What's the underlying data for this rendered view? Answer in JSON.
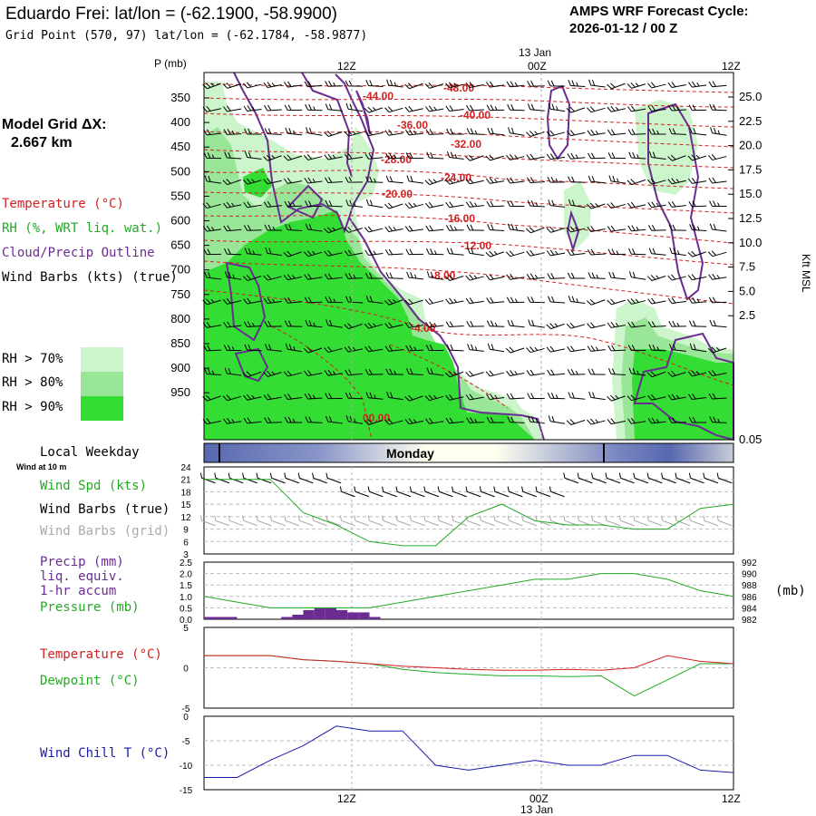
{
  "header": {
    "title": "Eduardo Frei:  lat/lon = (-62.1900, -58.9900)",
    "subtitle": "Grid Point (570, 97) lat/lon = (-62.1784, -58.9877)",
    "cycle_line1": "AMPS WRF Forecast Cycle:",
    "cycle_line2": "2026-01-12 / 00  Z"
  },
  "left_panel": {
    "model_grid_label": "Model Grid ΔX:",
    "model_grid_value": "2.667 km",
    "legend": [
      {
        "label": "Temperature (°C)",
        "color": "#d42020"
      },
      {
        "label": "RH (%, WRT liq. wat.)",
        "color": "#22aa22"
      },
      {
        "label": "Cloud/Precip Outline",
        "color": "#6a2c91"
      },
      {
        "label": "Wind Barbs (kts) (true)",
        "color": "#000000"
      }
    ],
    "rh_key": [
      {
        "label": "RH > 70%",
        "color": "#ccf5cc"
      },
      {
        "label": "RH > 80%",
        "color": "#99e699"
      },
      {
        "label": "RH > 90%",
        "color": "#33dd33"
      }
    ]
  },
  "chart_data": [
    {
      "type": "heatmap",
      "name": "time-height cross section",
      "y_left_label": "P (mb)",
      "y_left_ticks": [
        "350",
        "400",
        "450",
        "500",
        "550",
        "600",
        "650",
        "700",
        "750",
        "800",
        "850",
        "900",
        "950"
      ],
      "y_right_label": "Kft MSL",
      "y_right_ticks": [
        "25.0",
        "22.5",
        "20.0",
        "17.5",
        "15.0",
        "12.5",
        "10.0",
        "7.5",
        "5.0",
        "2.5",
        "0.05"
      ],
      "x_top_ticks": [
        "12Z",
        "00Z",
        "12Z"
      ],
      "x_top_date": "13 Jan",
      "temperature_labels": [
        "-48.00",
        "-44.00",
        "-40.00",
        "-36.00",
        "-32.00",
        "-28.00",
        "-24.00",
        "-20.00",
        "-16.00",
        "-12.00",
        "-8.00",
        "-4.00",
        "00.00"
      ],
      "colors": {
        "temperature": "#d42020",
        "rh70": "#ccf5cc",
        "rh80": "#99e699",
        "rh90": "#33dd33",
        "cloud": "#6a2c91"
      }
    },
    {
      "type": "bar",
      "name": "local weekday",
      "label": "Local Weekday",
      "day": "Monday"
    },
    {
      "type": "line",
      "name": "wind",
      "label_small": "Wind at 10 m",
      "series_labels": [
        {
          "label": "Wind Spd (kts)",
          "color": "#22aa22"
        },
        {
          "label": "Wind Barbs (true)",
          "color": "#000000"
        },
        {
          "label": "Wind Barbs (grid)",
          "color": "#aaaaaa"
        }
      ],
      "yticks": [
        "24",
        "21",
        "18",
        "15",
        "12",
        "9",
        "6",
        "3"
      ],
      "ylim": [
        3,
        24
      ],
      "x_hours": [
        0,
        3,
        6,
        9,
        12,
        15,
        18,
        21,
        24,
        27,
        30,
        33,
        36,
        39,
        42,
        45,
        48
      ],
      "wind_speed": [
        21,
        21,
        21,
        13,
        10,
        6,
        5,
        5,
        12,
        15,
        11,
        10,
        10,
        9,
        9,
        14,
        15
      ]
    },
    {
      "type": "line",
      "name": "precip-pressure",
      "series_labels": [
        {
          "label": "Precip (mm)",
          "color": "#6a2c91"
        },
        {
          "label": "liq. equiv.",
          "color": "#6a2c91"
        },
        {
          "label": "1-hr accum",
          "color": "#6a2c91"
        },
        {
          "label": "Pressure (mb)",
          "color": "#22aa22"
        }
      ],
      "left_ticks": [
        "2.5",
        "2.0",
        "1.5",
        "1.0",
        "0.5",
        "0.0"
      ],
      "right_ticks": [
        "992",
        "990",
        "988",
        "986",
        "984",
        "982"
      ],
      "right_unit": "(mb)",
      "ylim_precip": [
        0,
        2.5
      ],
      "ylim_pressure": [
        982,
        992
      ],
      "x_hours": [
        0,
        3,
        6,
        9,
        12,
        15,
        18,
        21,
        24,
        27,
        30,
        33,
        36,
        39,
        42,
        45,
        48
      ],
      "pressure": [
        986,
        985,
        984,
        984,
        984,
        984,
        985,
        986,
        987,
        988,
        989,
        989,
        990,
        990,
        989,
        987,
        986
      ],
      "precip_hours": [
        0,
        1,
        2,
        7,
        8,
        9,
        10,
        11,
        12,
        13,
        14,
        15
      ],
      "precip": [
        0.1,
        0.1,
        0.1,
        0.1,
        0.2,
        0.4,
        0.5,
        0.5,
        0.4,
        0.3,
        0.3,
        0.1
      ]
    },
    {
      "type": "line",
      "name": "temperature-dewpoint",
      "series_labels": [
        {
          "label": "Temperature (°C)",
          "color": "#d42020"
        },
        {
          "label": "Dewpoint (°C)",
          "color": "#22aa22"
        }
      ],
      "yticks": [
        "5",
        "0",
        "-5"
      ],
      "ylim": [
        -5,
        5
      ],
      "x_hours": [
        0,
        3,
        6,
        9,
        12,
        15,
        18,
        21,
        24,
        27,
        30,
        33,
        36,
        39,
        42,
        45,
        48
      ],
      "temperature": [
        1.5,
        1.5,
        1.5,
        1.0,
        0.8,
        0.5,
        0.2,
        0.0,
        -0.2,
        -0.3,
        -0.3,
        -0.2,
        -0.3,
        0.0,
        1.5,
        0.8,
        0.5
      ],
      "dewpoint": [
        1.5,
        1.5,
        1.5,
        1.0,
        0.8,
        0.5,
        -0.2,
        -0.6,
        -0.8,
        -1.0,
        -1.0,
        -1.1,
        -1.0,
        -3.5,
        -1.5,
        0.5,
        0.5
      ]
    },
    {
      "type": "line",
      "name": "wind-chill",
      "series_labels": [
        {
          "label": "Wind Chill T (°C)",
          "color": "#1a1aaa"
        }
      ],
      "yticks": [
        "0",
        "-5",
        "-10",
        "-15"
      ],
      "ylim": [
        -15,
        0
      ],
      "x_hours": [
        0,
        3,
        6,
        9,
        12,
        15,
        18,
        21,
        24,
        27,
        30,
        33,
        36,
        39,
        42,
        45,
        48
      ],
      "wind_chill": [
        -12.5,
        -12.5,
        -9,
        -6,
        -2,
        -3,
        -3,
        -10,
        -11,
        -10,
        -9,
        -10,
        -10,
        -8,
        -8,
        -11,
        -11.5
      ],
      "x_bottom_ticks": [
        "12Z",
        "00Z",
        "12Z"
      ],
      "x_bottom_date": "13 Jan"
    }
  ]
}
